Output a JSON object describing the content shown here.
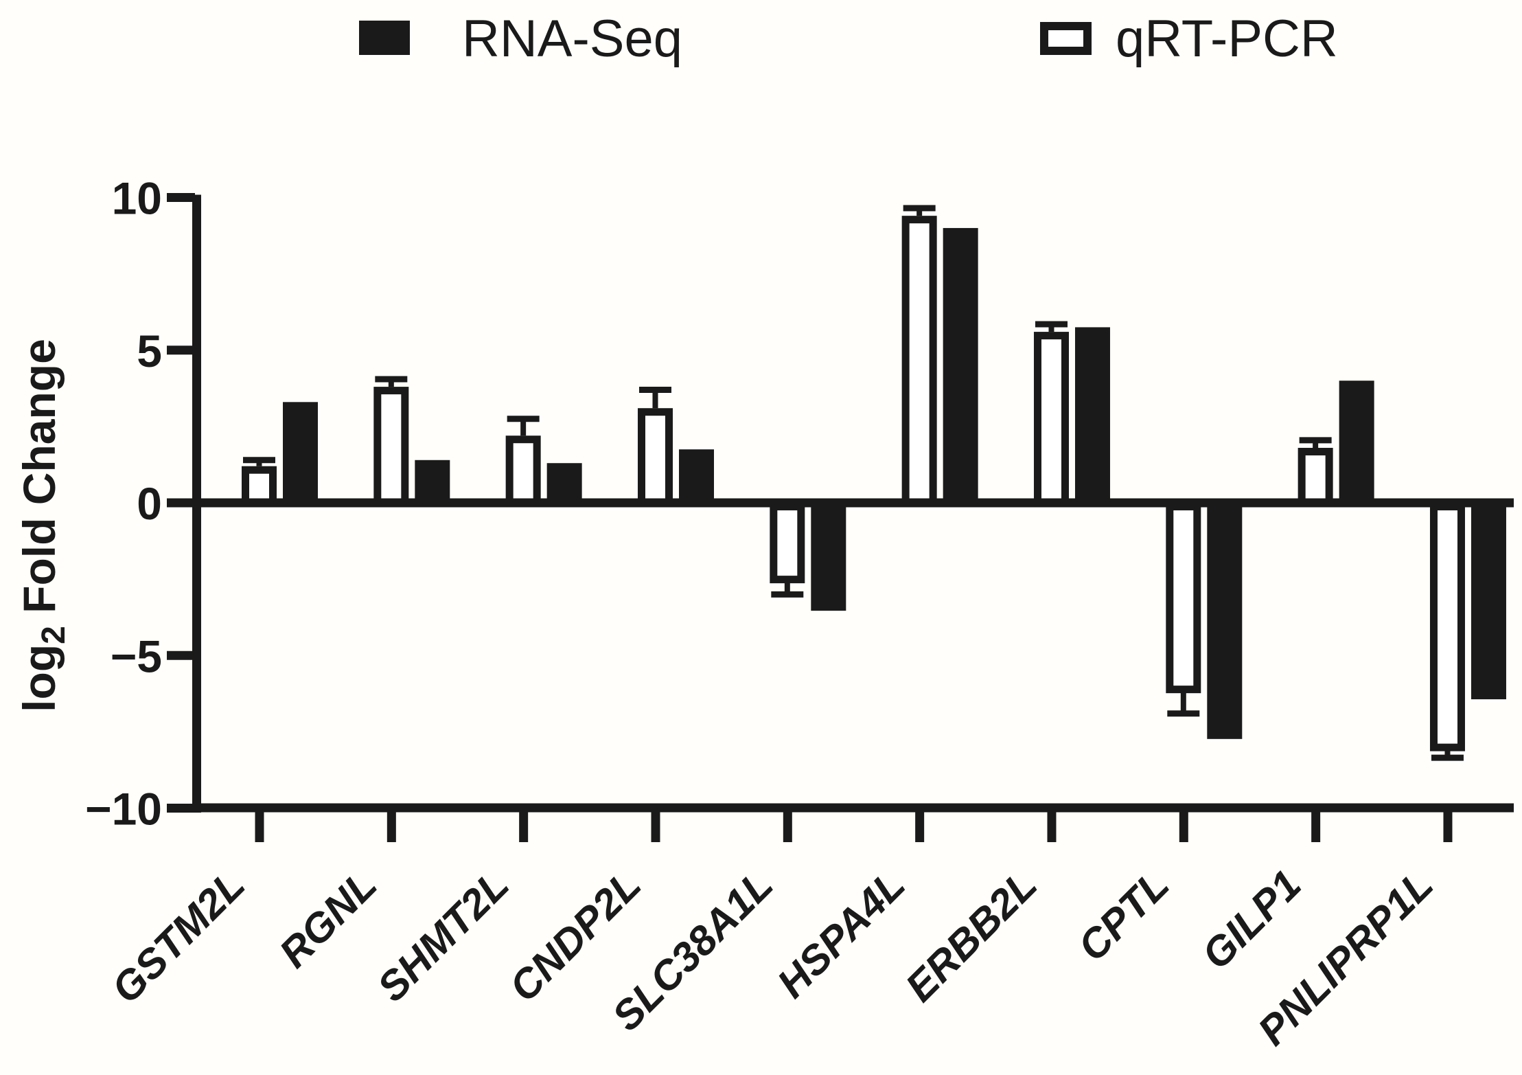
{
  "figure": {
    "background": "#fffefa",
    "ink": "#1a1a1a",
    "bar_fill_open": "#ffffff"
  },
  "legend": {
    "items": [
      {
        "label": "RNA-Seq",
        "swatch": "filled"
      },
      {
        "label": "qRT-PCR",
        "swatch": "open"
      }
    ]
  },
  "chart_data": {
    "type": "bar",
    "title": "",
    "categories": [
      "GSTM2L",
      "RGNL",
      "SHMT2L",
      "CNDP2L",
      "SLC38A1L",
      "HSPA4L",
      "ERBB2L",
      "CPTL",
      "GILP1",
      "PNLIPRP1L"
    ],
    "series": [
      {
        "name": "qRT-PCR",
        "style": "open",
        "values": [
          1.2,
          3.8,
          2.2,
          3.1,
          -2.5,
          9.4,
          5.6,
          -6.1,
          1.8,
          -8.0
        ],
        "errors": [
          0.2,
          0.25,
          0.55,
          0.6,
          0.5,
          0.25,
          0.25,
          0.8,
          0.25,
          0.35
        ]
      },
      {
        "name": "RNA-Seq",
        "style": "filled",
        "values": [
          3.3,
          1.4,
          1.3,
          1.75,
          -3.4,
          9.0,
          5.75,
          -7.6,
          4.0,
          -6.3
        ]
      }
    ],
    "ylabel": {
      "prefix": "log",
      "sub": "2",
      "suffix": " Fold Change"
    },
    "yticks": [
      10,
      5,
      0,
      -5,
      -10
    ],
    "ylim": [
      -10,
      10
    ],
    "grid": false,
    "legend_position": "top",
    "notes": "Open (white) qRT-PCR bar drawn left of filled (black) RNA-Seq bar for each gene; error bars (SD) shown on qRT-PCR bars only, extending away from zero."
  }
}
